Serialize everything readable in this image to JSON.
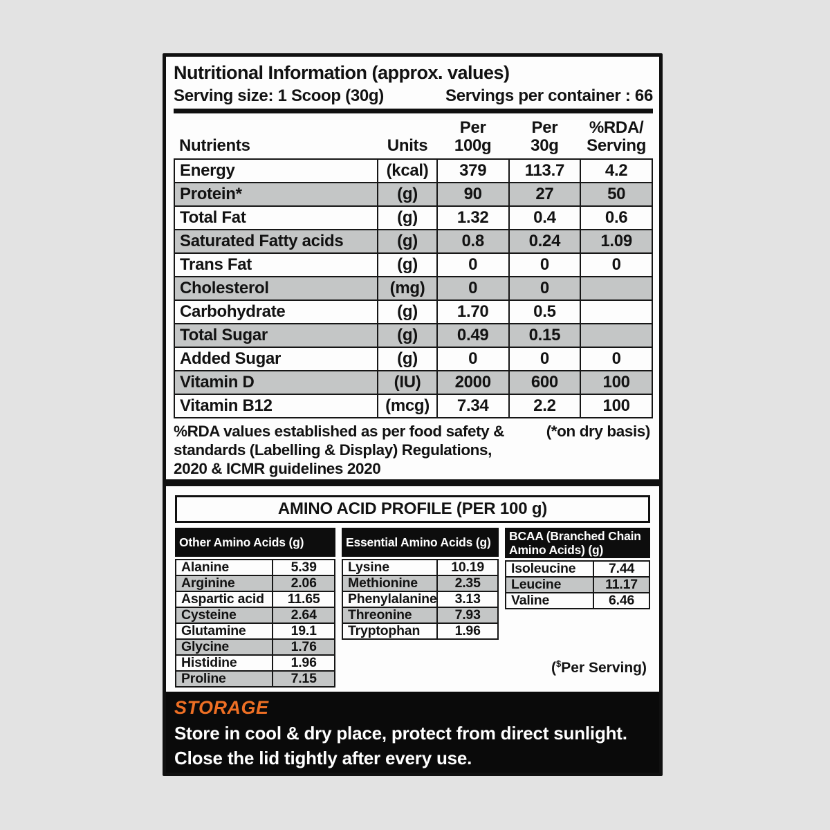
{
  "colors": {
    "page_background": "#e3e3e3",
    "row_shade": "#c4c6c6",
    "storage_accent": "#ee6f24",
    "label_border": "#101010"
  },
  "nutrition": {
    "title": "Nutritional Information (approx. values)",
    "serving_size": "Serving size: 1 Scoop (30g)",
    "servings_per_container": "Servings per container : 66",
    "columns": [
      "Nutrients",
      "Units",
      "Per\n100g",
      "Per\n30g",
      "%RDA/\nServing"
    ],
    "rows": [
      {
        "name": "Energy",
        "units": "(kcal)",
        "per_100g": "379",
        "per_30g": "113.7",
        "rda_serving": "4.2"
      },
      {
        "name": "Protein*",
        "units": "(g)",
        "per_100g": "90",
        "per_30g": "27",
        "rda_serving": "50"
      },
      {
        "name": "Total Fat",
        "units": "(g)",
        "per_100g": "1.32",
        "per_30g": "0.4",
        "rda_serving": "0.6"
      },
      {
        "name": "Saturated Fatty acids",
        "units": "(g)",
        "per_100g": "0.8",
        "per_30g": "0.24",
        "rda_serving": "1.09"
      },
      {
        "name": "Trans Fat",
        "units": "(g)",
        "per_100g": "0",
        "per_30g": "0",
        "rda_serving": "0"
      },
      {
        "name": "Cholesterol",
        "units": "(mg)",
        "per_100g": "0",
        "per_30g": "0",
        "rda_serving": ""
      },
      {
        "name": "Carbohydrate",
        "units": "(g)",
        "per_100g": "1.70",
        "per_30g": "0.5",
        "rda_serving": ""
      },
      {
        "name": "Total Sugar",
        "units": "(g)",
        "per_100g": "0.49",
        "per_30g": "0.15",
        "rda_serving": ""
      },
      {
        "name": "Added Sugar",
        "units": "(g)",
        "per_100g": "0",
        "per_30g": "0",
        "rda_serving": "0"
      },
      {
        "name": "Vitamin D",
        "units": "(IU)",
        "per_100g": "2000",
        "per_30g": "600",
        "rda_serving": "100"
      },
      {
        "name": "Vitamin B12",
        "units": "(mcg)",
        "per_100g": "7.34",
        "per_30g": "2.2",
        "rda_serving": "100"
      }
    ],
    "footnote": "%RDA values established as per food safety &\nstandards (Labelling  & Display) Regulations,\n2020 & ICMR guidelines 2020",
    "dry_basis_note": "(*on dry basis)"
  },
  "amino_profile": {
    "title": "AMINO ACID PROFILE (PER 100 g)",
    "groups": [
      {
        "header": "Other Amino Acids (g)",
        "rows": [
          {
            "name": "Alanine",
            "value": "5.39"
          },
          {
            "name": "Arginine",
            "value": "2.06"
          },
          {
            "name": "Aspartic acid",
            "value": "11.65"
          },
          {
            "name": "Cysteine",
            "value": "2.64"
          },
          {
            "name": "Glutamine",
            "value": "19.1"
          },
          {
            "name": "Glycine",
            "value": "1.76"
          },
          {
            "name": "Histidine",
            "value": "1.96"
          },
          {
            "name": "Proline",
            "value": "7.15"
          }
        ]
      },
      {
        "header": "Essential Amino Acids (g)",
        "rows": [
          {
            "name": "Lysine",
            "value": "10.19"
          },
          {
            "name": "Methionine",
            "value": "2.35"
          },
          {
            "name": "Phenylalanine",
            "value": "3.13"
          },
          {
            "name": "Threonine",
            "value": "7.93"
          },
          {
            "name": "Tryptophan",
            "value": "1.96"
          }
        ]
      },
      {
        "header": "BCAA (Branched Chain Amino Acids) (g)",
        "rows": [
          {
            "name": "Isoleucine",
            "value": "7.44"
          },
          {
            "name": "Leucine",
            "value": "11.17"
          },
          {
            "name": "Valine",
            "value": "6.46"
          }
        ]
      }
    ],
    "note": {
      "prefix": "(",
      "sup": "$",
      "rest": "Per Serving)"
    }
  },
  "storage": {
    "title": "STORAGE",
    "lines": [
      "Store in cool & dry place, protect from direct sunlight.",
      "Close the lid tightly after every use."
    ]
  }
}
